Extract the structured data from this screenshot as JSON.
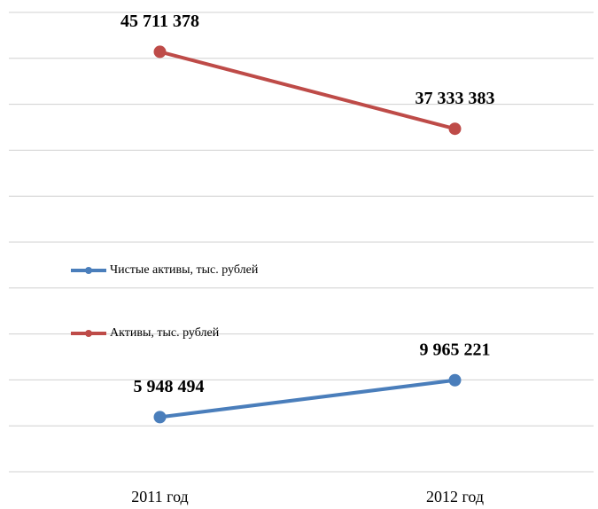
{
  "chart_data": {
    "type": "line",
    "categories": [
      "2011 год",
      "2012 год"
    ],
    "series": [
      {
        "name": "Чистые активы, тыс. рублей",
        "color": "#4a7ebb",
        "values": [
          5948494,
          9965221
        ],
        "value_labels": [
          "5 948 494",
          "9 965 221"
        ]
      },
      {
        "name": "Активы, тыс. рублей",
        "color": "#be4b48",
        "values": [
          45711378,
          37333383
        ],
        "value_labels": [
          "45 711 378",
          "37 333 383"
        ]
      }
    ],
    "ylim": [
      0,
      50000000
    ],
    "yticks": [
      0,
      5000000,
      10000000,
      15000000,
      20000000,
      25000000,
      30000000,
      35000000,
      40000000,
      45000000,
      50000000
    ],
    "grid": true,
    "legend": "left"
  }
}
